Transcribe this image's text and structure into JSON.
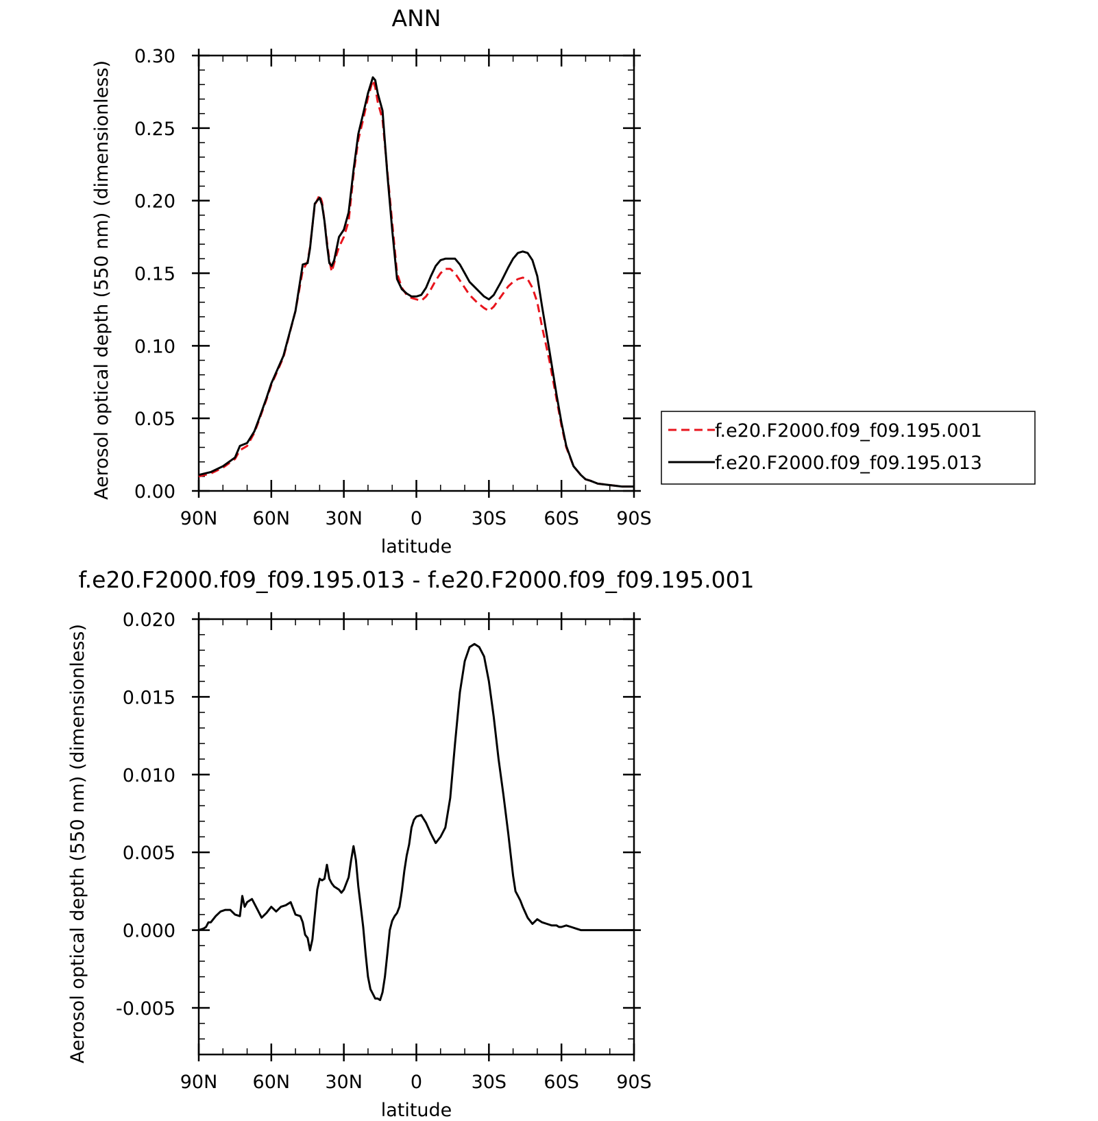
{
  "chart_data": [
    {
      "type": "line",
      "title": "ANN",
      "xlabel": "latitude",
      "ylabel": "Aerosol optical depth (550 nm) (dimensionless)",
      "xlim": [
        90,
        -90
      ],
      "ylim": [
        0.0,
        0.3
      ],
      "x_ticks": [
        90,
        60,
        30,
        0,
        -30,
        -60,
        -90
      ],
      "x_tick_labels": [
        "90N",
        "60N",
        "30N",
        "0",
        "30S",
        "60S",
        "90S"
      ],
      "y_ticks": [
        0.0,
        0.05,
        0.1,
        0.15,
        0.2,
        0.25,
        0.3
      ],
      "y_tick_labels": [
        "0.00",
        "0.05",
        "0.10",
        "0.15",
        "0.20",
        "0.25",
        "0.30"
      ],
      "legend_position": "right",
      "series": [
        {
          "name": "f.e20.F2000.f09_f09.195.001",
          "color": "#e8141c",
          "dash": "dashed",
          "x": [
            90,
            85,
            80,
            75,
            73,
            70,
            67,
            65,
            62,
            60,
            55,
            50,
            47,
            45,
            44,
            42,
            40,
            39,
            38,
            37,
            36,
            35,
            34,
            33,
            32,
            30,
            28,
            26,
            24,
            22,
            20,
            18,
            17,
            16,
            14,
            12,
            10,
            8,
            6,
            4,
            2,
            0,
            -2,
            -4,
            -6,
            -8,
            -10,
            -12,
            -14,
            -16,
            -18,
            -20,
            -22,
            -25,
            -28,
            -30,
            -32,
            -35,
            -38,
            -40,
            -42,
            -44,
            -46,
            -48,
            -50,
            -52,
            -55,
            -58,
            -60,
            -62,
            -65,
            -68,
            -70,
            -72,
            -75,
            -80,
            -85,
            -90
          ],
          "values": [
            0.01,
            0.012,
            0.016,
            0.022,
            0.028,
            0.031,
            0.04,
            0.049,
            0.063,
            0.073,
            0.092,
            0.124,
            0.152,
            0.158,
            0.168,
            0.197,
            0.204,
            0.199,
            0.186,
            0.172,
            0.159,
            0.151,
            0.157,
            0.163,
            0.168,
            0.175,
            0.186,
            0.218,
            0.242,
            0.256,
            0.271,
            0.283,
            0.278,
            0.268,
            0.256,
            0.22,
            0.185,
            0.15,
            0.14,
            0.135,
            0.133,
            0.132,
            0.131,
            0.134,
            0.139,
            0.145,
            0.15,
            0.153,
            0.153,
            0.15,
            0.145,
            0.14,
            0.135,
            0.13,
            0.126,
            0.124,
            0.127,
            0.134,
            0.141,
            0.144,
            0.146,
            0.147,
            0.146,
            0.14,
            0.13,
            0.113,
            0.09,
            0.063,
            0.045,
            0.03,
            0.017,
            0.011,
            0.008,
            0.007,
            0.005,
            0.004,
            0.003,
            0.003
          ]
        },
        {
          "name": "f.e20.F2000.f09_f09.195.013",
          "color": "#000000",
          "dash": "solid",
          "x": [
            90,
            85,
            80,
            75,
            73,
            70,
            67,
            65,
            62,
            60,
            55,
            50,
            47,
            45,
            44,
            42,
            40,
            39,
            38,
            37,
            36,
            35,
            34,
            33,
            32,
            30,
            28,
            26,
            24,
            22,
            20,
            18,
            17,
            16,
            14,
            12,
            10,
            8,
            6,
            4,
            2,
            0,
            -2,
            -4,
            -6,
            -8,
            -10,
            -12,
            -14,
            -16,
            -18,
            -20,
            -22,
            -25,
            -28,
            -30,
            -32,
            -35,
            -38,
            -40,
            -42,
            -44,
            -46,
            -48,
            -50,
            -52,
            -55,
            -58,
            -60,
            -62,
            -65,
            -68,
            -70,
            -72,
            -75,
            -80,
            -85,
            -90
          ],
          "values": [
            0.011,
            0.013,
            0.017,
            0.023,
            0.031,
            0.033,
            0.041,
            0.05,
            0.064,
            0.074,
            0.093,
            0.124,
            0.156,
            0.157,
            0.167,
            0.198,
            0.202,
            0.197,
            0.186,
            0.17,
            0.157,
            0.155,
            0.159,
            0.167,
            0.175,
            0.18,
            0.192,
            0.221,
            0.246,
            0.26,
            0.274,
            0.285,
            0.283,
            0.274,
            0.262,
            0.218,
            0.18,
            0.146,
            0.139,
            0.136,
            0.134,
            0.134,
            0.135,
            0.14,
            0.148,
            0.155,
            0.159,
            0.16,
            0.16,
            0.16,
            0.156,
            0.15,
            0.144,
            0.139,
            0.134,
            0.132,
            0.135,
            0.144,
            0.154,
            0.16,
            0.164,
            0.165,
            0.164,
            0.159,
            0.148,
            0.127,
            0.097,
            0.066,
            0.047,
            0.031,
            0.017,
            0.011,
            0.008,
            0.007,
            0.005,
            0.004,
            0.003,
            0.003
          ]
        }
      ]
    },
    {
      "type": "line",
      "title": "f.e20.F2000.f09_f09.195.013 - f.e20.F2000.f09_f09.195.001",
      "xlabel": "latitude",
      "ylabel": "Aerosol optical depth (550 nm) (dimensionless)",
      "xlim": [
        90,
        -90
      ],
      "ylim": [
        -0.008,
        0.02
      ],
      "x_ticks": [
        90,
        60,
        30,
        0,
        -30,
        -60,
        -90
      ],
      "x_tick_labels": [
        "90N",
        "60N",
        "30N",
        "0",
        "30S",
        "60S",
        "90S"
      ],
      "y_ticks": [
        -0.005,
        0.0,
        0.005,
        0.01,
        0.015,
        0.02
      ],
      "y_tick_labels": [
        "-0.005",
        "0.000",
        "0.005",
        "0.010",
        "0.015",
        "0.020"
      ],
      "series": [
        {
          "color": "#000000",
          "dash": "solid",
          "x": [
            90,
            88,
            87,
            86,
            85,
            83,
            81,
            79,
            77,
            75,
            73,
            72,
            71,
            70,
            68,
            66,
            64,
            62,
            60,
            58,
            56,
            54,
            52,
            50,
            48,
            47,
            46,
            45,
            44,
            43,
            42,
            41,
            40,
            39,
            38,
            37,
            36,
            35,
            34,
            33,
            32,
            31,
            30,
            29,
            28,
            27,
            26,
            25,
            24,
            23,
            22,
            21,
            20,
            19,
            18,
            17,
            16,
            15,
            14,
            13,
            12,
            11,
            10,
            9,
            8,
            7,
            6,
            5,
            4,
            3,
            2,
            1,
            0,
            -2,
            -4,
            -6,
            -8,
            -10,
            -12,
            -14,
            -16,
            -18,
            -20,
            -22,
            -24,
            -26,
            -28,
            -30,
            -32,
            -34,
            -36,
            -38,
            -40,
            -41,
            -42,
            -43,
            -44,
            -46,
            -48,
            -50,
            -52,
            -54,
            -56,
            -58,
            -59,
            -60,
            -62,
            -64,
            -66,
            -68,
            -70,
            -72,
            -73,
            -74,
            -76,
            -78,
            -80,
            -82,
            -84,
            -86,
            -88,
            -90
          ],
          "values": [
            0.0,
            0.0001,
            0.0002,
            0.0005,
            0.0005,
            0.0009,
            0.0012,
            0.0013,
            0.0013,
            0.001,
            0.0009,
            0.0022,
            0.0015,
            0.0018,
            0.002,
            0.0014,
            0.0008,
            0.0011,
            0.0015,
            0.0012,
            0.0015,
            0.0016,
            0.0018,
            0.001,
            0.0009,
            0.0005,
            -0.0003,
            -0.0005,
            -0.0013,
            -0.0006,
            0.001,
            0.0026,
            0.0033,
            0.0032,
            0.0033,
            0.0042,
            0.0033,
            0.003,
            0.0028,
            0.0027,
            0.0026,
            0.0024,
            0.0026,
            0.003,
            0.0034,
            0.0045,
            0.0054,
            0.0045,
            0.0028,
            0.0015,
            0.0002,
            -0.0015,
            -0.003,
            -0.0038,
            -0.0041,
            -0.0044,
            -0.0044,
            -0.0045,
            -0.004,
            -0.003,
            -0.0015,
            0.0,
            0.0006,
            0.0009,
            0.0011,
            0.0015,
            0.0025,
            0.0038,
            0.0048,
            0.0055,
            0.0066,
            0.0071,
            0.0073,
            0.0074,
            0.0069,
            0.0062,
            0.0056,
            0.006,
            0.0066,
            0.0085,
            0.012,
            0.0153,
            0.0173,
            0.0182,
            0.0184,
            0.0182,
            0.0176,
            0.016,
            0.0137,
            0.011,
            0.0087,
            0.0062,
            0.0035,
            0.0025,
            0.0022,
            0.0019,
            0.0015,
            0.0008,
            0.0004,
            0.0007,
            0.0005,
            0.0004,
            0.0003,
            0.0003,
            0.0002,
            0.0002,
            0.0003,
            0.0002,
            0.0001,
            0.0,
            0.0,
            0.0,
            0.0,
            0.0,
            0.0,
            0.0,
            0.0,
            0.0,
            0.0,
            0.0,
            0.0,
            0.0
          ]
        }
      ]
    }
  ]
}
